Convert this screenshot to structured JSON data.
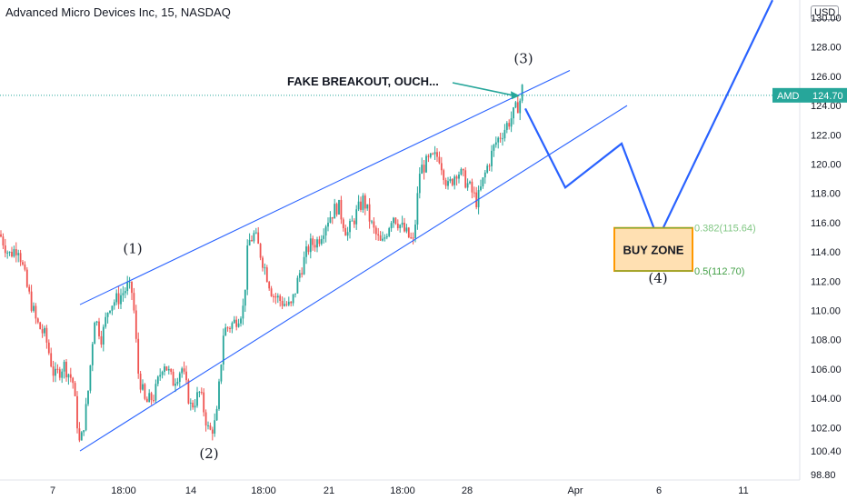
{
  "header": {
    "title": "Advanced Micro Devices Inc, 15, NASDAQ",
    "currency": "USD"
  },
  "chart_data": {
    "type": "line",
    "title": "Advanced Micro Devices Inc, 15, NASDAQ",
    "ylim": [
      97.8,
      131.2
    ],
    "y_ticks": [
      "130.00",
      "128.00",
      "126.00",
      "124.00",
      "122.00",
      "120.00",
      "118.00",
      "116.00",
      "114.00",
      "112.00",
      "110.00",
      "108.00",
      "106.00",
      "104.00",
      "102.00",
      "100.40",
      "98.80"
    ],
    "x_ticks": [
      "7",
      "18:00",
      "14",
      "18:00",
      "21",
      "18:00",
      "28",
      "Apr",
      "6",
      "11"
    ],
    "last_price": {
      "symbol": "AMD",
      "value": "124.70"
    },
    "colors": {
      "up": "#26a69a",
      "down": "#ef5350",
      "lines": "#2962ff",
      "fib": "#4caf50",
      "box": "#ff9800"
    },
    "price_series": [
      {
        "x": 0,
        "y": 115.2
      },
      {
        "x": 10,
        "y": 113.8
      },
      {
        "x": 20,
        "y": 114.4
      },
      {
        "x": 30,
        "y": 111.5
      },
      {
        "x": 40,
        "y": 109.2
      },
      {
        "x": 50,
        "y": 108.2
      },
      {
        "x": 60,
        "y": 105.4
      },
      {
        "x": 70,
        "y": 106.3
      },
      {
        "x": 80,
        "y": 105.2
      },
      {
        "x": 88,
        "y": 100.6
      },
      {
        "x": 96,
        "y": 103.8
      },
      {
        "x": 104,
        "y": 109.6
      },
      {
        "x": 112,
        "y": 108.1
      },
      {
        "x": 120,
        "y": 110.4
      },
      {
        "x": 130,
        "y": 110.8
      },
      {
        "x": 140,
        "y": 111.6
      },
      {
        "x": 146,
        "y": 111.2
      },
      {
        "x": 152,
        "y": 105.8
      },
      {
        "x": 160,
        "y": 103.6
      },
      {
        "x": 170,
        "y": 104.2
      },
      {
        "x": 180,
        "y": 106.6
      },
      {
        "x": 190,
        "y": 105.1
      },
      {
        "x": 200,
        "y": 106.1
      },
      {
        "x": 210,
        "y": 103.4
      },
      {
        "x": 220,
        "y": 104.4
      },
      {
        "x": 230,
        "y": 101.6
      },
      {
        "x": 238,
        "y": 102.4
      },
      {
        "x": 246,
        "y": 108.6
      },
      {
        "x": 258,
        "y": 109.2
      },
      {
        "x": 268,
        "y": 110.2
      },
      {
        "x": 273,
        "y": 114.6
      },
      {
        "x": 280,
        "y": 115.2
      },
      {
        "x": 290,
        "y": 113.2
      },
      {
        "x": 300,
        "y": 111.1
      },
      {
        "x": 310,
        "y": 110.6
      },
      {
        "x": 320,
        "y": 110.2
      },
      {
        "x": 330,
        "y": 112.6
      },
      {
        "x": 340,
        "y": 114.4
      },
      {
        "x": 350,
        "y": 114.8
      },
      {
        "x": 360,
        "y": 116.2
      },
      {
        "x": 372,
        "y": 117.2
      },
      {
        "x": 382,
        "y": 115.2
      },
      {
        "x": 392,
        "y": 116.6
      },
      {
        "x": 400,
        "y": 117.6
      },
      {
        "x": 410,
        "y": 115.6
      },
      {
        "x": 420,
        "y": 114.4
      },
      {
        "x": 432,
        "y": 116.6
      },
      {
        "x": 445,
        "y": 115.4
      },
      {
        "x": 455,
        "y": 114.6
      },
      {
        "x": 462,
        "y": 119.6
      },
      {
        "x": 472,
        "y": 120.2
      },
      {
        "x": 483,
        "y": 120.6
      },
      {
        "x": 493,
        "y": 118.4
      },
      {
        "x": 503,
        "y": 119.6
      },
      {
        "x": 513,
        "y": 118.8
      },
      {
        "x": 525,
        "y": 117.4
      },
      {
        "x": 535,
        "y": 119.6
      },
      {
        "x": 545,
        "y": 121.4
      },
      {
        "x": 555,
        "y": 122.4
      },
      {
        "x": 565,
        "y": 123.4
      },
      {
        "x": 572,
        "y": 124.3
      },
      {
        "x": 576,
        "y": 125.6
      }
    ],
    "wedge_upper": [
      {
        "x": 88,
        "y": 110.4
      },
      {
        "x": 627,
        "y": 126.4
      }
    ],
    "wedge_lower": [
      {
        "x": 88,
        "y": 100.4
      },
      {
        "x": 690,
        "y": 124.0
      }
    ],
    "projection": [
      {
        "x": 578,
        "y": 123.8
      },
      {
        "x": 622,
        "y": 118.4
      },
      {
        "x": 684,
        "y": 121.4
      },
      {
        "x": 724,
        "y": 114.9
      },
      {
        "x": 850,
        "y": 131.2
      }
    ],
    "fib_levels": [
      {
        "label": "0.382(115.64)",
        "value": 115.64
      },
      {
        "label": "0.5(112.70)",
        "value": 112.7
      }
    ],
    "buy_zone": {
      "label": "BUY ZONE",
      "low": 112.7,
      "high": 115.64
    },
    "wave_labels": [
      {
        "label": "(1)",
        "x": 146,
        "y": 113.9
      },
      {
        "label": "(2)",
        "x": 230,
        "y": 99.9
      },
      {
        "label": "(3)",
        "x": 576,
        "y": 126.9
      },
      {
        "label": "(4)",
        "x": 724,
        "y": 111.9
      }
    ],
    "annotation": {
      "text": "FAKE BREAKOUT, OUCH...",
      "target_x": 572,
      "target_y": 124.8
    }
  }
}
